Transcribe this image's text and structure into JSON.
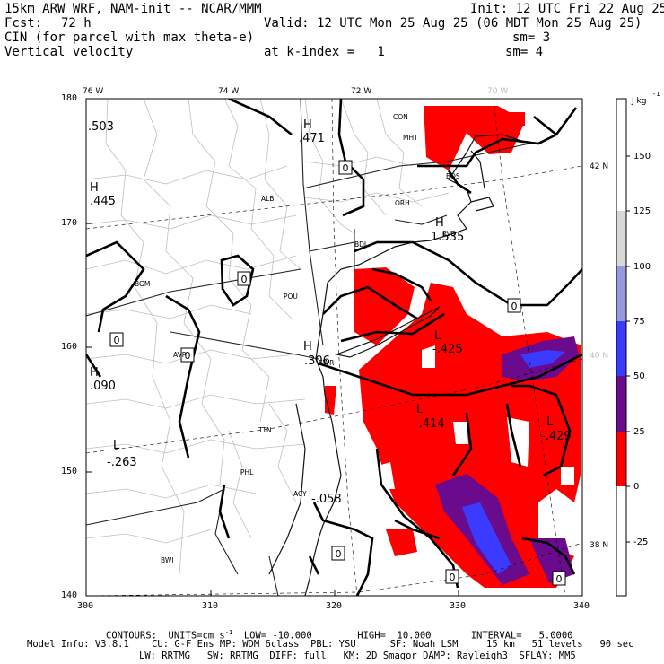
{
  "header": {
    "model": "15km ARW WRF, NAM-init -- NCAR/MMM",
    "init": "Init: 12 UTC Fri 22 Aug 25",
    "fcst_label": "Fcst:",
    "fcst_value": "72 h",
    "valid": "Valid: 12 UTC Mon 25 Aug 25 (06 MDT Mon 25 Aug 25)",
    "field1": "CIN (for parcel with max theta-e)",
    "field1_sm": "sm= 3",
    "field2": "Vertical velocity",
    "field2_level": "at k-index =   1",
    "field2_sm": "sm= 4"
  },
  "map": {
    "lon_labels": [
      "76 W",
      "74 W",
      "72 W",
      "70 W"
    ],
    "lat_labels": [
      "42 N",
      "40 N",
      "38 N"
    ],
    "y_ticks": [
      "180",
      "170",
      "160",
      "150",
      "140"
    ],
    "x_ticks": [
      "300",
      "310",
      "320",
      "330",
      "340"
    ],
    "cities": [
      "CON",
      "MHT",
      "BOS",
      "ALB",
      "ORH",
      "BDL",
      "PVD",
      "BGM",
      "POU",
      "AVP",
      "EWR",
      "TTN",
      "PHL",
      "ACY",
      "BWI"
    ],
    "high_low": [
      {
        "kind": "H",
        "value": ".503"
      },
      {
        "kind": "H",
        "value": ".471"
      },
      {
        "kind": "H",
        "value": ".445"
      },
      {
        "kind": "H",
        "value": "1.535"
      },
      {
        "kind": "H",
        "value": ".090"
      },
      {
        "kind": "H",
        "value": ".306"
      },
      {
        "kind": "L",
        "value": "-.425"
      },
      {
        "kind": "L",
        "value": "-.414"
      },
      {
        "kind": "L",
        "value": "-.429"
      },
      {
        "kind": "L",
        "value": "-.263"
      },
      {
        "kind": "L",
        "value": "-.058"
      }
    ],
    "contour_zero_label": "0"
  },
  "colorbar": {
    "unit": "J kg",
    "unit_exp": "-1",
    "labels": [
      "150",
      "125",
      "100",
      "75",
      "50",
      "25",
      "0",
      "-25"
    ],
    "colors": {
      "0-25": "#ff0000",
      "25-50": "#6a0a8c",
      "50-75": "#3b3bff",
      "75-100": "#9898e0",
      "100-125": "#d8d8d8",
      "other": "#ffffff"
    }
  },
  "footer": {
    "contours": "CONTOURS:  UNITS=cm s",
    "contours_exp": "-1",
    "contours_rest": "  LOW= -10.000        HIGH=  10.000       INTERVAL=   5.0000",
    "line1": "Model Info: V3.8.1    CU: G-F Ens MP: WDM 6class  PBL: YSU      SF: Noah LSM     15 km   51 levels   90 sec",
    "line2": "LW: RRTMG   SW: RRTMG  DIFF: full   KM: 2D Smagor DAMP: Rayleigh3  SFLAY: MM5"
  }
}
